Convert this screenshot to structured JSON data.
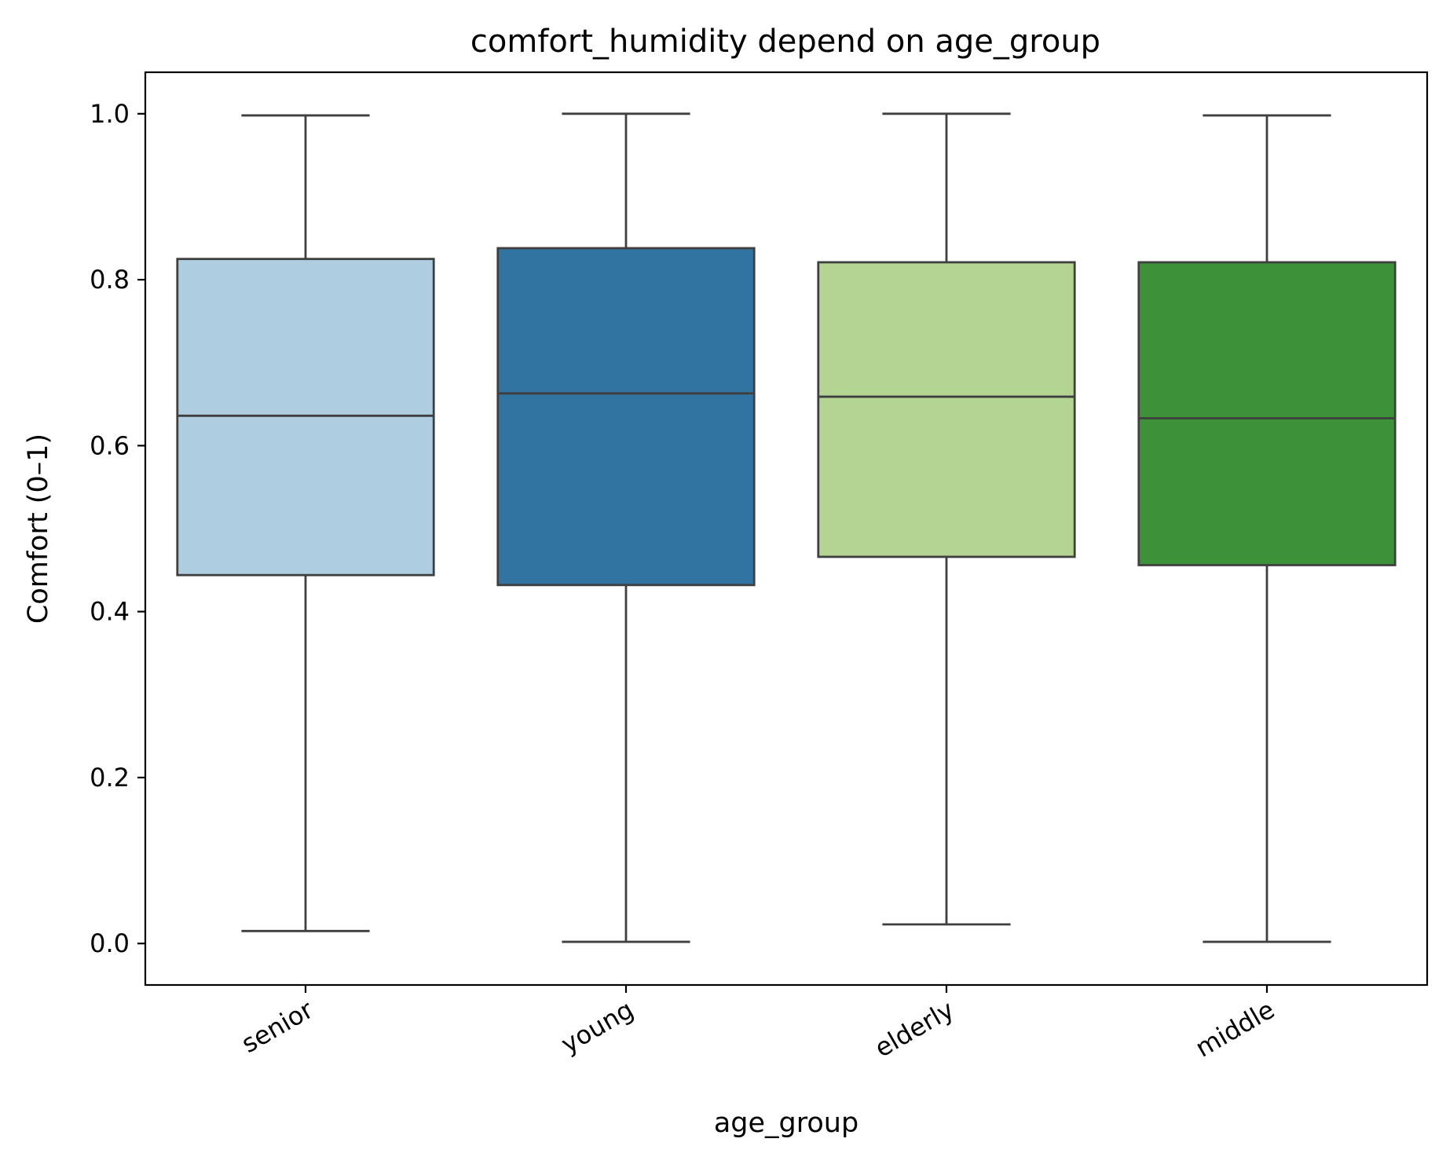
{
  "chart_data": {
    "type": "box",
    "title": "comfort_humidity depend on age_group",
    "xlabel": "age_group",
    "ylabel": "Comfort (0–1)",
    "ylim": [
      -0.05,
      1.05
    ],
    "yticks": [
      0.0,
      0.2,
      0.4,
      0.6,
      0.8,
      1.0
    ],
    "ytick_labels": [
      "0.0",
      "0.2",
      "0.4",
      "0.6",
      "0.8",
      "1.0"
    ],
    "categories": [
      "senior",
      "young",
      "elderly",
      "middle"
    ],
    "grid": false,
    "legend": "none",
    "boxes": [
      {
        "category": "senior",
        "whisker_low": 0.015,
        "q1": 0.444,
        "median": 0.636,
        "q3": 0.825,
        "whisker_high": 0.998,
        "color": "#aecde1"
      },
      {
        "category": "young",
        "whisker_low": 0.002,
        "q1": 0.432,
        "median": 0.663,
        "q3": 0.838,
        "whisker_high": 1.0,
        "color": "#3274a1"
      },
      {
        "category": "elderly",
        "whisker_low": 0.023,
        "q1": 0.466,
        "median": 0.659,
        "q3": 0.821,
        "whisker_high": 1.0,
        "color": "#b4d493"
      },
      {
        "category": "middle",
        "whisker_low": 0.002,
        "q1": 0.456,
        "median": 0.633,
        "q3": 0.821,
        "whisker_high": 0.998,
        "color": "#3d9139"
      }
    ],
    "line_color": "#3f3f3f"
  }
}
